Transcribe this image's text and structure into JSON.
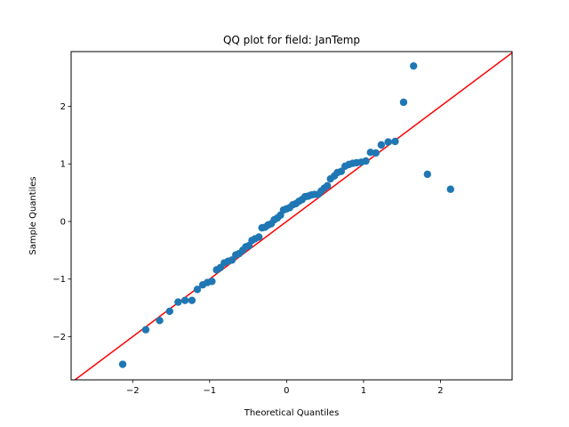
{
  "chart_data": {
    "type": "scatter",
    "title": "QQ plot for field: JanTemp",
    "xlabel": "Theoretical Quantiles",
    "ylabel": "Sample Quantiles",
    "xlim": [
      -2.8,
      2.93
    ],
    "ylim": [
      -2.75,
      2.95
    ],
    "xticks": [
      -2,
      -1,
      0,
      1,
      2
    ],
    "yticks": [
      -2,
      -1,
      0,
      1,
      2
    ],
    "xtick_labels": [
      "−2",
      "−1",
      "0",
      "1",
      "2"
    ],
    "ytick_labels": [
      "−2",
      "−1",
      "0",
      "1",
      "2"
    ],
    "grid": false,
    "marker_color": "#1f77b4",
    "line_color": "#ff0000",
    "reference_line": {
      "slope": 1,
      "intercept": 0
    },
    "series": [
      {
        "x": [
          -2.13,
          -1.83,
          -1.65,
          -1.52,
          -1.41,
          -1.32,
          -1.23,
          -1.16,
          -1.09,
          -1.03,
          -0.97,
          -0.91,
          -0.86,
          -0.81,
          -0.76,
          -0.71,
          -0.66,
          -0.62,
          -0.57,
          -0.53,
          -0.49,
          -0.45,
          -0.41,
          -0.36,
          -0.32,
          -0.28,
          -0.24,
          -0.2,
          -0.16,
          -0.12,
          -0.08,
          -0.04,
          0,
          0.04,
          0.08,
          0.12,
          0.16,
          0.2,
          0.24,
          0.28,
          0.32,
          0.36,
          0.41,
          0.45,
          0.49,
          0.53,
          0.57,
          0.62,
          0.66,
          0.71,
          0.76,
          0.81,
          0.86,
          0.91,
          0.97,
          1.03,
          1.09,
          1.16,
          1.23,
          1.32,
          1.41,
          1.52,
          1.65,
          1.83,
          2.13
        ],
        "y": [
          -2.48,
          -1.88,
          -1.72,
          -1.56,
          -1.4,
          -1.37,
          -1.37,
          -1.18,
          -1.1,
          -1.06,
          -1.04,
          -0.84,
          -0.8,
          -0.72,
          -0.69,
          -0.67,
          -0.58,
          -0.56,
          -0.5,
          -0.44,
          -0.42,
          -0.33,
          -0.3,
          -0.27,
          -0.11,
          -0.1,
          -0.06,
          -0.04,
          0.03,
          0.06,
          0.11,
          0.2,
          0.22,
          0.24,
          0.29,
          0.31,
          0.35,
          0.38,
          0.43,
          0.44,
          0.46,
          0.47,
          0.47,
          0.53,
          0.58,
          0.62,
          0.74,
          0.79,
          0.85,
          0.87,
          0.96,
          0.99,
          1.01,
          1.02,
          1.03,
          1.05,
          1.2,
          1.19,
          1.33,
          1.38,
          1.39,
          2.07,
          2.7,
          0.82,
          0.56
        ]
      }
    ]
  }
}
